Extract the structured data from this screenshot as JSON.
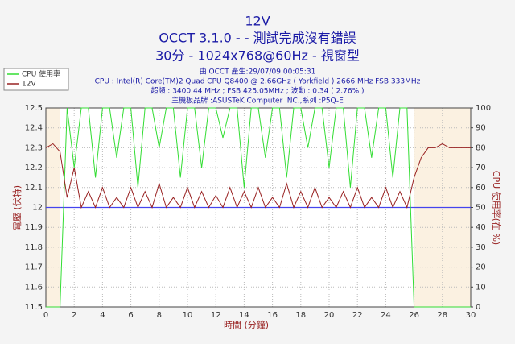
{
  "chart_data": {
    "type": "line",
    "title": "12V",
    "subtitle": "OCCT 3.1.0 -  - 測試完成沒有錯誤",
    "subtitle2": "30分 - 1024x768@60Hz - 視窗型",
    "info": [
      "由 OCCT 產生:29/07/09 00:05:31",
      "CPU : Intel(R) Core(TM)2 Quad CPU Q8400 @ 2.66GHz ( Yorkfield ) 2666 MHz FSB 333MHz",
      "超頻 : 3400.44 MHz ; FSB 425.05MHz ; 波動 : 0.34 ( 2.76% )",
      "主機板品牌 :ASUSTeK Computer INC.,系列 :P5Q-E"
    ],
    "x_label": "時間 (分鐘)",
    "y_label": "電壓 (伏特)",
    "y2_label": "CPU 使用率(在 %)",
    "x": [
      0,
      0.5,
      1,
      1.5,
      2,
      2.5,
      3,
      3.5,
      4,
      4.5,
      5,
      5.5,
      6,
      6.5,
      7,
      7.5,
      8,
      8.5,
      9,
      9.5,
      10,
      10.5,
      11,
      11.5,
      12,
      12.5,
      13,
      13.5,
      14,
      14.5,
      15,
      15.5,
      16,
      16.5,
      17,
      17.5,
      18,
      18.5,
      19,
      19.5,
      20,
      20.5,
      21,
      21.5,
      22,
      22.5,
      23,
      23.5,
      24,
      24.5,
      25,
      25.5,
      26,
      26.5,
      27,
      27.5,
      28,
      28.5,
      29,
      29.5,
      30
    ],
    "series": [
      {
        "name": "CPU 使用率",
        "color": "#33dd33",
        "axis": "y2",
        "values": [
          0,
          0,
          0,
          100,
          70,
          100,
          100,
          65,
          100,
          100,
          75,
          100,
          100,
          60,
          100,
          100,
          80,
          100,
          100,
          65,
          100,
          100,
          70,
          100,
          100,
          85,
          100,
          100,
          60,
          100,
          100,
          75,
          100,
          100,
          65,
          100,
          100,
          80,
          100,
          100,
          70,
          100,
          100,
          60,
          100,
          100,
          75,
          100,
          100,
          65,
          100,
          100,
          0,
          0,
          0,
          0,
          0,
          0,
          0,
          0,
          0
        ]
      },
      {
        "name": "12V",
        "color": "#992222",
        "values": [
          12.3,
          12.32,
          12.28,
          12.05,
          12.2,
          12.0,
          12.08,
          12.0,
          12.1,
          12.0,
          12.05,
          12.0,
          12.1,
          12.0,
          12.08,
          12.0,
          12.12,
          12.0,
          12.05,
          12.0,
          12.1,
          12.0,
          12.08,
          12.0,
          12.06,
          12.0,
          12.1,
          12.0,
          12.08,
          12.0,
          12.1,
          12.0,
          12.05,
          12.0,
          12.12,
          12.0,
          12.08,
          12.0,
          12.1,
          12.0,
          12.05,
          12.0,
          12.08,
          12.0,
          12.1,
          12.0,
          12.05,
          12.0,
          12.1,
          12.0,
          12.08,
          12.0,
          12.15,
          12.25,
          12.3,
          12.3,
          12.32,
          12.3,
          12.3,
          12.3,
          12.3
        ]
      }
    ],
    "reference_line": 12,
    "highlight_ranges": [
      [
        0,
        1
      ],
      [
        26,
        30
      ]
    ],
    "xlim": [
      0,
      30
    ],
    "xticks": [
      0,
      2,
      4,
      6,
      8,
      10,
      12,
      14,
      16,
      18,
      20,
      22,
      24,
      26,
      28,
      30
    ],
    "ylim": [
      11.5,
      12.5
    ],
    "yticks": [
      11.5,
      11.6,
      11.7,
      11.8,
      11.9,
      12,
      12.1,
      12.2,
      12.3,
      12.4,
      12.5
    ],
    "y2lim": [
      0,
      100
    ],
    "y2ticks": [
      0,
      10,
      20,
      30,
      40,
      50,
      60,
      70,
      80,
      90,
      100
    ],
    "grid": true,
    "legend": "top-left"
  }
}
